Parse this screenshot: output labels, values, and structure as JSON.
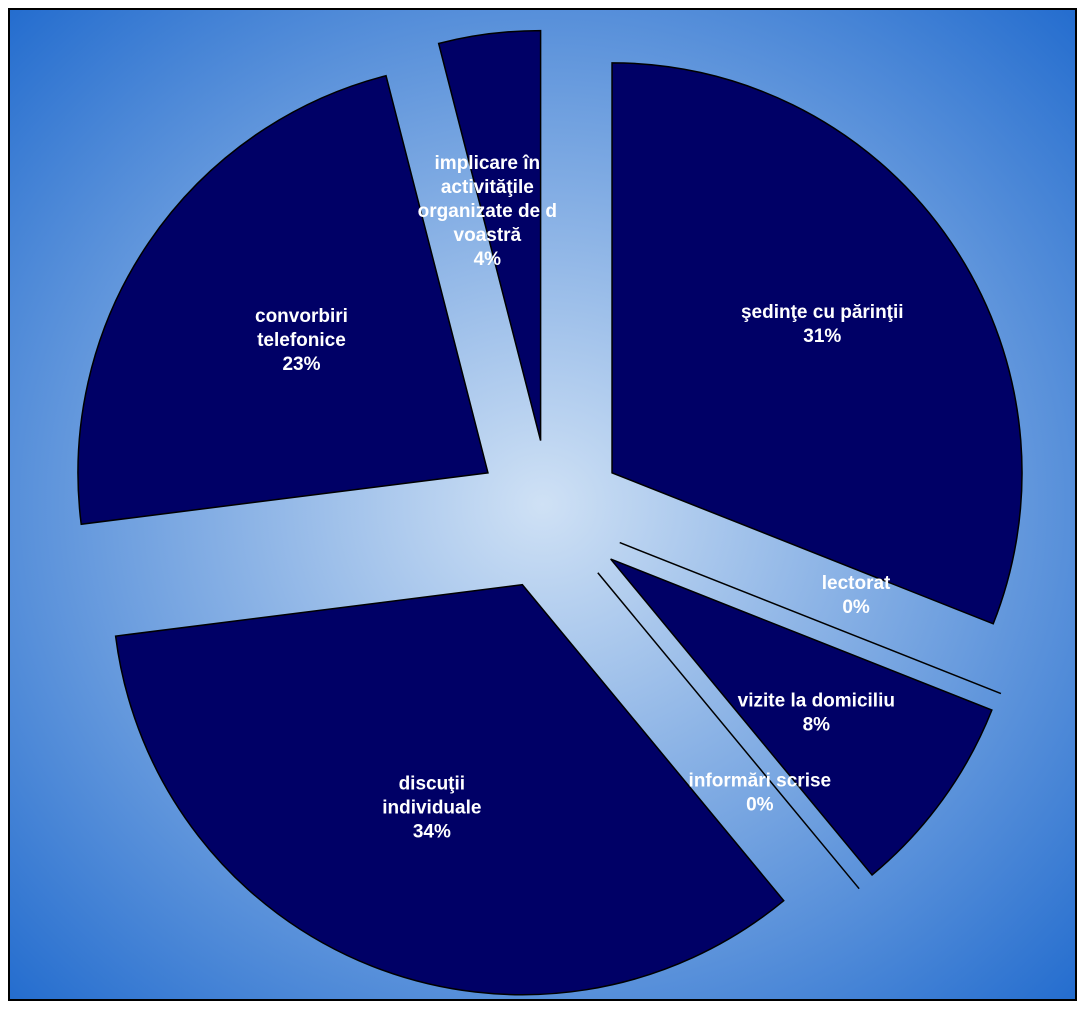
{
  "chart_data": {
    "type": "pie",
    "exploded": true,
    "title": "",
    "slices": [
      {
        "label_lines": [
          "şedinţe cu părinţii"
        ],
        "value": 31,
        "pct_label": "31%"
      },
      {
        "label_lines": [
          "lectorat"
        ],
        "value": 0,
        "pct_label": "0%"
      },
      {
        "label_lines": [
          "vizite la domiciliu"
        ],
        "value": 8,
        "pct_label": "8%"
      },
      {
        "label_lines": [
          "informări scrise"
        ],
        "value": 0,
        "pct_label": "0%"
      },
      {
        "label_lines": [
          "discuţii",
          "individuale"
        ],
        "value": 34,
        "pct_label": "34%"
      },
      {
        "label_lines": [
          "convorbiri",
          "telefonice"
        ],
        "value": 23,
        "pct_label": "23%"
      },
      {
        "label_lines": [
          "implicare în",
          "activităţile",
          "organizate de d",
          "voastră"
        ],
        "value": 4,
        "pct_label": "4%"
      }
    ],
    "colors": {
      "slice_fill": "#000066",
      "slice_stroke": "#000000",
      "label_text": "#ffffff",
      "background_center": "#cfe1f5",
      "background_edge": "#1a66cc"
    },
    "legend": "none"
  }
}
